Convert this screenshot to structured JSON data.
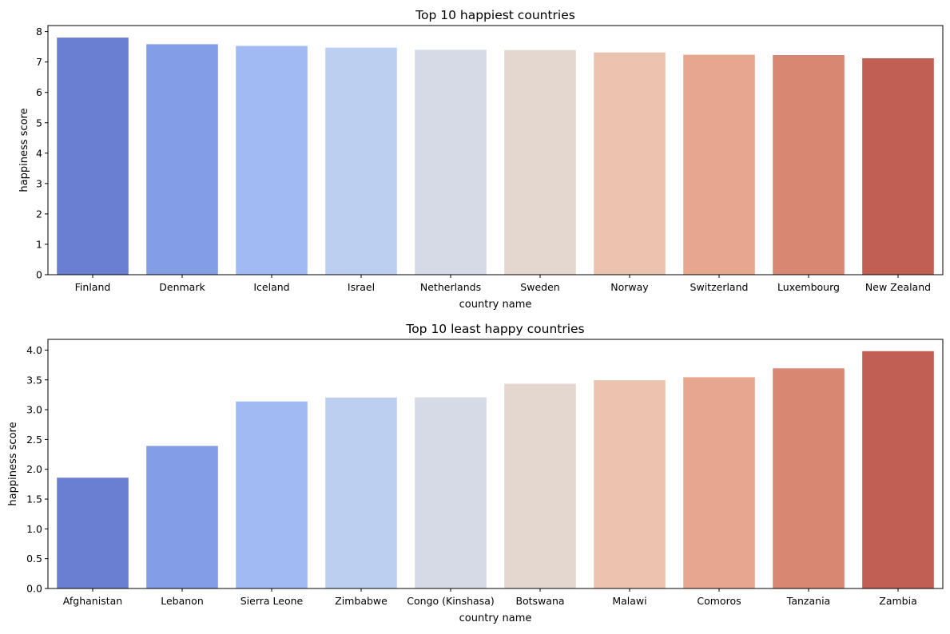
{
  "chart_data": [
    {
      "type": "bar",
      "title": "Top 10 happiest countries",
      "xlabel": "country name",
      "ylabel": "happiness score",
      "categories": [
        "Finland",
        "Denmark",
        "Iceland",
        "Israel",
        "Netherlands",
        "Sweden",
        "Norway",
        "Switzerland",
        "Luxembourg",
        "New Zealand"
      ],
      "values": [
        7.804,
        7.586,
        7.53,
        7.473,
        7.403,
        7.395,
        7.315,
        7.24,
        7.228,
        7.123
      ],
      "ylim": [
        0,
        8.2
      ],
      "yticks": [
        0,
        1,
        2,
        3,
        4,
        5,
        6,
        7,
        8
      ],
      "ytick_labels": [
        "0",
        "1",
        "2",
        "3",
        "4",
        "5",
        "6",
        "7",
        "8"
      ],
      "grid": false,
      "legend": "none",
      "colors": [
        "#6a7fd2",
        "#849ee5",
        "#a2baf3",
        "#bccff0",
        "#d5dae6",
        "#e3d7cf",
        "#ebc3af",
        "#e6a78e",
        "#d88772",
        "#c15f53"
      ]
    },
    {
      "type": "bar",
      "title": "Top 10 least happy countries",
      "xlabel": "country name",
      "ylabel": "happiness score",
      "categories": [
        "Afghanistan",
        "Lebanon",
        "Sierra Leone",
        "Zimbabwe",
        "Congo (Kinshasa)",
        "Botswana",
        "Malawi",
        "Comoros",
        "Tanzania",
        "Zambia"
      ],
      "values": [
        1.859,
        2.392,
        3.138,
        3.204,
        3.207,
        3.435,
        3.495,
        3.545,
        3.694,
        3.982
      ],
      "ylim": [
        0,
        4.18
      ],
      "yticks": [
        0,
        0.5,
        1,
        1.5,
        2,
        2.5,
        3,
        3.5,
        4
      ],
      "ytick_labels": [
        "0.0",
        "0.5",
        "1.0",
        "1.5",
        "2.0",
        "2.5",
        "3.0",
        "3.5",
        "4.0"
      ],
      "grid": false,
      "legend": "none",
      "colors": [
        "#6a7fd2",
        "#849ee5",
        "#a2baf3",
        "#bccff0",
        "#d5dae6",
        "#e3d7cf",
        "#ebc3af",
        "#e6a78e",
        "#d88772",
        "#c15f53"
      ]
    }
  ]
}
